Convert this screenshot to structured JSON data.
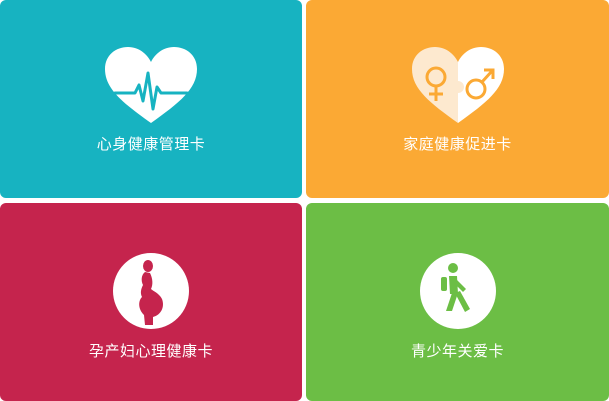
{
  "colors": {
    "card_1_bg": "#17b3c1",
    "card_2_bg": "#fba934",
    "card_3_bg": "#c5244d",
    "card_4_bg": "#6cbe45",
    "icon_fill": "#ffffff"
  },
  "cards": [
    {
      "label": "心身健康管理卡",
      "icon": "heart-pulse-icon"
    },
    {
      "label": "家庭健康促进卡",
      "icon": "heart-gender-icon"
    },
    {
      "label": "孕产妇心理健康卡",
      "icon": "pregnant-woman-icon"
    },
    {
      "label": "青少年关爱卡",
      "icon": "walking-person-icon"
    }
  ]
}
